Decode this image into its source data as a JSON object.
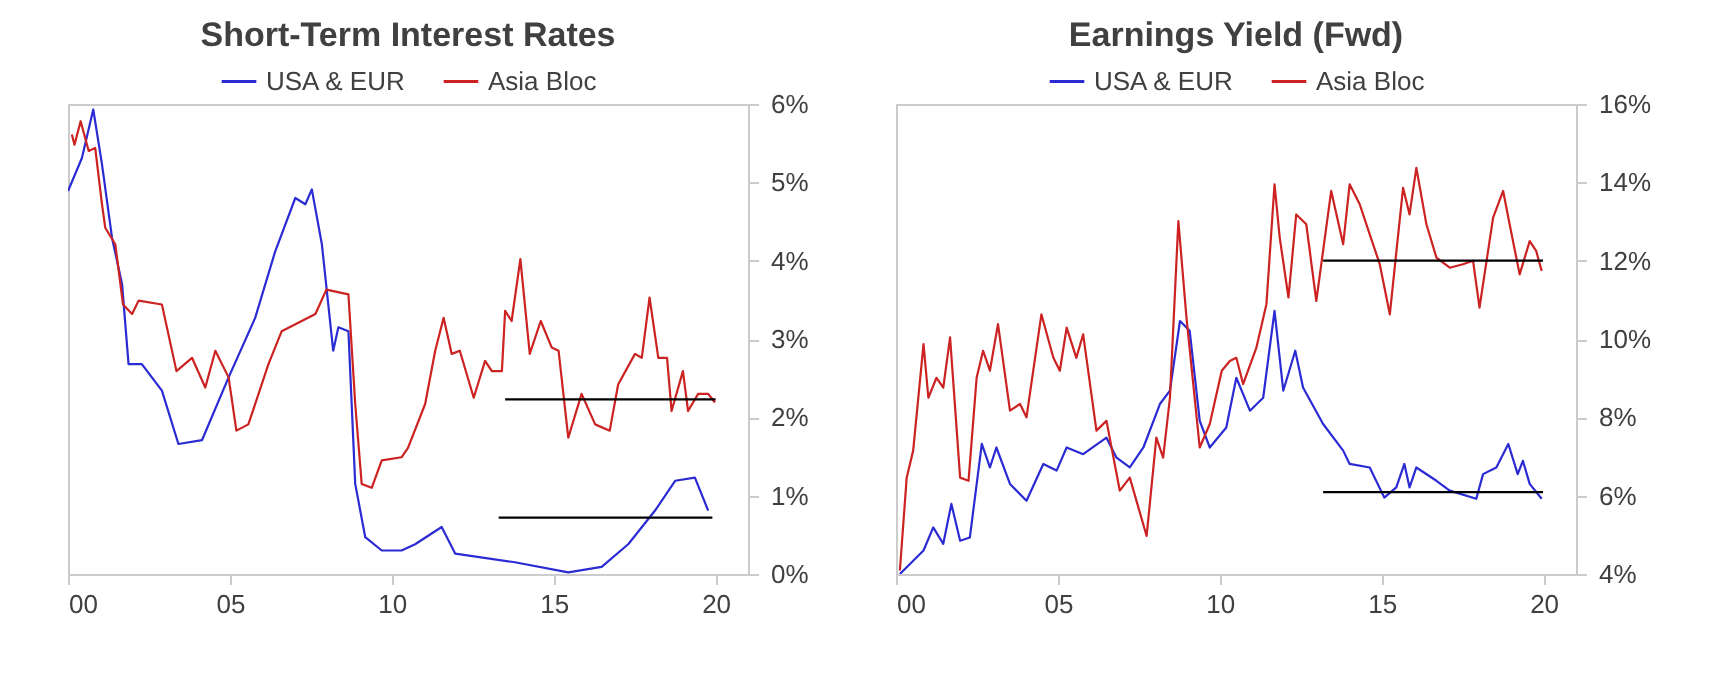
{
  "chart_data": [
    {
      "type": "line",
      "title": "Short-Term Interest Rates",
      "legend": "top",
      "grid": false,
      "xlim": [
        0,
        21
      ],
      "ylim": [
        0,
        6
      ],
      "xticks": [
        {
          "value": 0,
          "label": "00"
        },
        {
          "value": 5,
          "label": "05"
        },
        {
          "value": 10,
          "label": "10"
        },
        {
          "value": 15,
          "label": "15"
        },
        {
          "value": 20,
          "label": "20"
        }
      ],
      "yticks": [
        {
          "value": 0,
          "label": "0%"
        },
        {
          "value": 1,
          "label": "1%"
        },
        {
          "value": 2,
          "label": "2%"
        },
        {
          "value": 3,
          "label": "3%"
        },
        {
          "value": 4,
          "label": "4%"
        },
        {
          "value": 5,
          "label": "5%"
        },
        {
          "value": 6,
          "label": "6%"
        }
      ],
      "series": [
        {
          "name": "USA & EUR",
          "color": "#2b2bd4",
          "x": [
            0,
            0.43,
            0.78,
            1.05,
            1.36,
            1.67,
            1.87,
            2.28,
            2.9,
            3.41,
            4.14,
            4.96,
            5.78,
            6.4,
            7.02,
            7.33,
            7.53,
            7.84,
            8.19,
            8.35,
            8.66,
            8.87,
            9.18,
            9.69,
            10.3,
            10.72,
            11.54,
            11.96,
            13.8,
            15.45,
            16.48,
            17.3,
            18.13,
            18.75,
            19.36,
            19.77
          ],
          "values": [
            4.89,
            5.31,
            5.93,
            5.23,
            4.29,
            3.7,
            2.68,
            2.68,
            2.34,
            1.66,
            1.71,
            2.51,
            3.27,
            4.12,
            4.8,
            4.72,
            4.91,
            4.21,
            2.85,
            3.15,
            3.1,
            1.15,
            0.47,
            0.3,
            0.3,
            0.38,
            0.6,
            0.26,
            0.15,
            0.02,
            0.09,
            0.38,
            0.81,
            1.19,
            1.23,
            0.81
          ]
        },
        {
          "name": "Asia Bloc",
          "color": "#cc2222",
          "x": [
            0.12,
            0.2,
            0.39,
            0.64,
            0.84,
            1.05,
            1.15,
            1.46,
            1.7,
            1.98,
            2.18,
            2.9,
            3.35,
            3.83,
            4.24,
            4.55,
            4.96,
            5.2,
            5.57,
            6.19,
            6.6,
            7.64,
            7.98,
            8.66,
            8.87,
            9.07,
            9.38,
            9.69,
            10.3,
            10.5,
            11.03,
            11.34,
            11.6,
            11.85,
            12.1,
            12.53,
            12.88,
            13.09,
            13.4,
            13.5,
            13.7,
            13.97,
            14.26,
            14.6,
            14.94,
            15.15,
            15.45,
            15.86,
            16.28,
            16.73,
            16.99,
            17.51,
            17.72,
            17.96,
            18.23,
            18.5,
            18.64,
            18.99,
            19.15,
            19.46,
            19.77,
            19.98
          ],
          "values": [
            5.61,
            5.48,
            5.78,
            5.4,
            5.44,
            4.72,
            4.42,
            4.21,
            3.44,
            3.32,
            3.49,
            3.44,
            2.59,
            2.76,
            2.38,
            2.85,
            2.51,
            1.83,
            1.91,
            2.68,
            3.1,
            3.32,
            3.63,
            3.57,
            2.17,
            1.15,
            1.1,
            1.45,
            1.49,
            1.61,
            2.17,
            2.85,
            3.27,
            2.81,
            2.85,
            2.25,
            2.72,
            2.59,
            2.59,
            3.36,
            3.23,
            4.02,
            2.81,
            3.23,
            2.89,
            2.85,
            1.74,
            2.3,
            1.91,
            1.83,
            2.42,
            2.81,
            2.76,
            3.53,
            2.76,
            2.76,
            2.08,
            2.59,
            2.08,
            2.3,
            2.3,
            2.19
          ]
        },
        {
          "type": "line",
          "color": "#000000",
          "x": [
            13.5,
            20
          ],
          "values": [
            2.23,
            2.23
          ]
        },
        {
          "type": "line",
          "color": "#000000",
          "x": [
            13.3,
            19.9
          ],
          "values": [
            0.72,
            0.72
          ]
        }
      ]
    },
    {
      "type": "line",
      "title": "Earnings Yield (Fwd)",
      "legend": "top",
      "grid": false,
      "xlim": [
        0,
        21
      ],
      "ylim": [
        4,
        16
      ],
      "xticks": [
        {
          "value": 0,
          "label": "00"
        },
        {
          "value": 5,
          "label": "05"
        },
        {
          "value": 10,
          "label": "10"
        },
        {
          "value": 15,
          "label": "15"
        },
        {
          "value": 20,
          "label": "20"
        }
      ],
      "yticks": [
        {
          "value": 4,
          "label": "4%"
        },
        {
          "value": 6,
          "label": "6%"
        },
        {
          "value": 8,
          "label": "8%"
        },
        {
          "value": 10,
          "label": "10%"
        },
        {
          "value": 12,
          "label": "12%"
        },
        {
          "value": 14,
          "label": "14%"
        },
        {
          "value": 16,
          "label": "16%"
        }
      ],
      "series": [
        {
          "name": "USA & EUR",
          "color": "#2b2bd4",
          "x": [
            0.12,
            0.85,
            1.15,
            1.46,
            1.71,
            1.98,
            2.28,
            2.65,
            2.9,
            3.1,
            3.52,
            4.03,
            4.55,
            4.96,
            5.27,
            5.78,
            6.5,
            6.81,
            7.22,
            7.64,
            8.15,
            8.46,
            8.77,
            9.07,
            9.38,
            9.69,
            10.2,
            10.51,
            10.93,
            11.34,
            11.69,
            11.96,
            12.33,
            12.57,
            13.19,
            13.81,
            14.01,
            14.63,
            15.08,
            15.45,
            15.7,
            15.86,
            16.07,
            16.69,
            17.1,
            17.92,
            18.13,
            18.54,
            18.91,
            19.2,
            19.36,
            19.57,
            19.94
          ],
          "values": [
            4.0,
            4.6,
            5.19,
            4.77,
            5.79,
            4.85,
            4.93,
            7.32,
            6.72,
            7.23,
            6.3,
            5.87,
            6.81,
            6.64,
            7.23,
            7.06,
            7.48,
            6.97,
            6.72,
            7.23,
            8.34,
            8.68,
            10.46,
            10.21,
            7.91,
            7.23,
            7.74,
            9.01,
            8.17,
            8.5,
            10.72,
            8.68,
            9.7,
            8.76,
            7.83,
            7.15,
            6.81,
            6.72,
            5.95,
            6.21,
            6.81,
            6.21,
            6.72,
            6.38,
            6.13,
            5.92,
            6.55,
            6.72,
            7.32,
            6.55,
            6.89,
            6.3,
            5.92
          ]
        },
        {
          "name": "Asia Bloc",
          "color": "#cc2222",
          "x": [
            0.12,
            0.33,
            0.53,
            0.85,
            1.0,
            1.25,
            1.46,
            1.67,
            1.98,
            2.24,
            2.49,
            2.69,
            2.9,
            3.15,
            3.52,
            3.83,
            4.03,
            4.49,
            4.86,
            5.06,
            5.27,
            5.57,
            5.78,
            6.19,
            6.5,
            6.91,
            7.22,
            7.74,
            8.04,
            8.25,
            8.46,
            8.72,
            8.97,
            9.38,
            9.69,
            10.06,
            10.31,
            10.51,
            10.72,
            11.13,
            11.44,
            11.69,
            11.85,
            12.12,
            12.36,
            12.67,
            12.98,
            13.44,
            13.81,
            14.01,
            14.32,
            14.63,
            14.94,
            15.25,
            15.66,
            15.86,
            16.07,
            16.38,
            16.69,
            17.1,
            17.51,
            17.82,
            18.02,
            18.44,
            18.75,
            18.95,
            19.26,
            19.57,
            19.77,
            19.94
          ],
          "values": [
            4.09,
            6.46,
            7.15,
            9.87,
            8.5,
            9.01,
            8.76,
            10.04,
            6.46,
            6.38,
            9.01,
            9.7,
            9.19,
            10.38,
            8.17,
            8.34,
            8.0,
            10.63,
            9.52,
            9.19,
            10.29,
            9.52,
            10.12,
            7.66,
            7.91,
            6.13,
            6.46,
            4.97,
            7.48,
            6.97,
            8.5,
            13.01,
            10.55,
            7.23,
            7.83,
            9.19,
            9.44,
            9.52,
            8.85,
            9.78,
            10.89,
            13.95,
            12.59,
            11.06,
            13.18,
            12.93,
            10.97,
            13.78,
            12.42,
            13.95,
            13.44,
            12.67,
            11.91,
            10.63,
            13.86,
            13.18,
            14.37,
            12.93,
            12.08,
            11.82,
            11.91,
            12.0,
            10.8,
            13.1,
            13.78,
            12.93,
            11.65,
            12.5,
            12.25,
            11.74
          ]
        },
        {
          "type": "line",
          "color": "#000000",
          "x": [
            13.19,
            19.98
          ],
          "values": [
            12.0,
            12.0
          ]
        },
        {
          "type": "line",
          "color": "#000000",
          "x": [
            13.19,
            19.98
          ],
          "values": [
            6.09,
            6.09
          ]
        }
      ]
    }
  ]
}
